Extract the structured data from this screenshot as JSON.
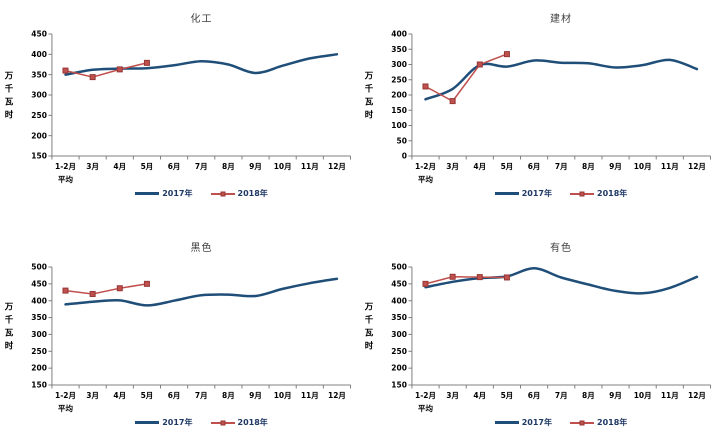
{
  "colors": {
    "series_2017": "#1F4E79",
    "series_2018": "#C0504D",
    "marker_border": "#953735",
    "axis": "#808080",
    "tick_text": "#000000",
    "title_text": "#3f3f3f",
    "legend_text": "#1f3864"
  },
  "chart_data": [
    {
      "type": "line",
      "title": "化工",
      "ylabel": "万千瓦时",
      "ylim": [
        150,
        450
      ],
      "ystep": 50,
      "grid": false,
      "legend_position": "bottom",
      "categories": [
        "1-2月",
        "3月",
        "4月",
        "5月",
        "6月",
        "7月",
        "8月",
        "9月",
        "10月",
        "11月",
        "12月"
      ],
      "first_category_line2": "平均",
      "series": [
        {
          "name": "2017年",
          "values": [
            350,
            362,
            365,
            366,
            373,
            383,
            375,
            354,
            372,
            390,
            400
          ]
        },
        {
          "name": "2018年",
          "values": [
            360,
            344,
            363,
            379
          ]
        }
      ]
    },
    {
      "type": "line",
      "title": "建材",
      "ylabel": "万千瓦时",
      "ylim": [
        0,
        400
      ],
      "ystep": 50,
      "grid": false,
      "legend_position": "bottom",
      "categories": [
        "1-2月",
        "3月",
        "4月",
        "5月",
        "6月",
        "7月",
        "8月",
        "9月",
        "10月",
        "11月",
        "12月"
      ],
      "first_category_line2": "平均",
      "series": [
        {
          "name": "2017年",
          "values": [
            186,
            220,
            298,
            293,
            313,
            306,
            304,
            290,
            298,
            315,
            285
          ]
        },
        {
          "name": "2018年",
          "values": [
            228,
            180,
            300,
            334
          ]
        }
      ]
    },
    {
      "type": "line",
      "title": "黑色",
      "ylabel": "万千瓦时",
      "ylim": [
        150,
        500
      ],
      "ystep": 50,
      "grid": false,
      "legend_position": "bottom",
      "categories": [
        "1-2月",
        "3月",
        "4月",
        "5月",
        "6月",
        "7月",
        "8月",
        "9月",
        "10月",
        "11月",
        "12月"
      ],
      "first_category_line2": "平均",
      "series": [
        {
          "name": "2017年",
          "values": [
            389,
            397,
            401,
            386,
            400,
            416,
            418,
            414,
            435,
            452,
            465
          ]
        },
        {
          "name": "2018年",
          "values": [
            430,
            420,
            437,
            450
          ]
        }
      ]
    },
    {
      "type": "line",
      "title": "有色",
      "ylabel": "万千瓦时",
      "ylim": [
        150,
        500
      ],
      "ystep": 50,
      "grid": false,
      "legend_position": "bottom",
      "categories": [
        "1-2月",
        "3月",
        "4月",
        "5月",
        "6月",
        "7月",
        "8月",
        "9月",
        "10月",
        "11月",
        "12月"
      ],
      "first_category_line2": "平均",
      "series": [
        {
          "name": "2017年",
          "values": [
            440,
            456,
            467,
            472,
            496,
            469,
            448,
            429,
            422,
            438,
            471
          ]
        },
        {
          "name": "2018年",
          "values": [
            450,
            471,
            470,
            469
          ]
        }
      ]
    }
  ]
}
